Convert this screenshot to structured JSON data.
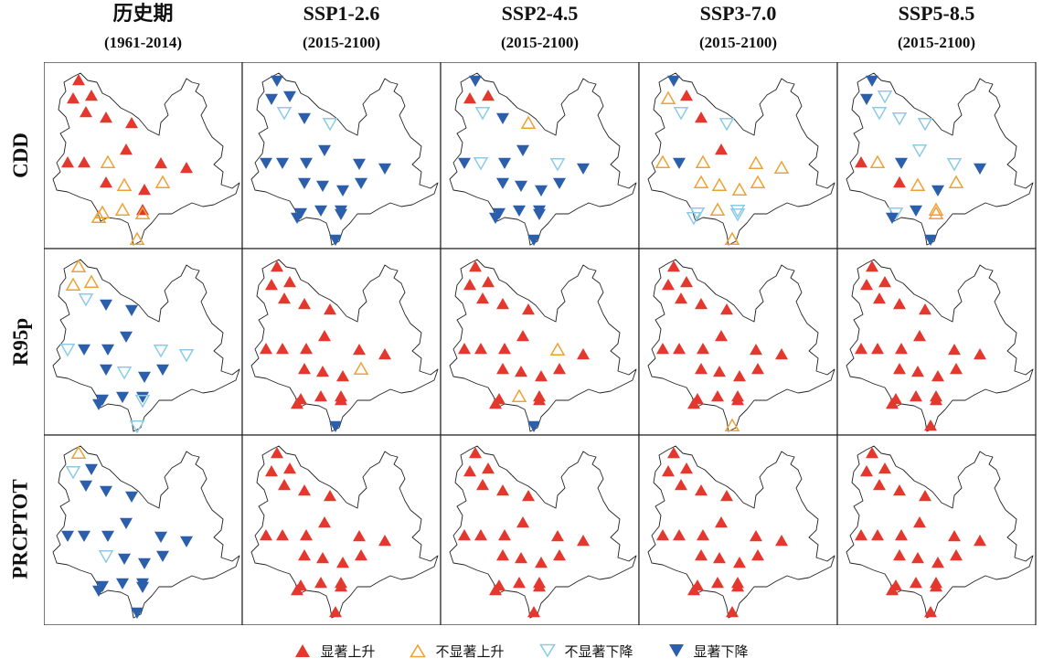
{
  "columns": [
    {
      "title": "历史期",
      "period": "(1961-2014)"
    },
    {
      "title": "SSP1-2.6",
      "period": "(2015-2100)"
    },
    {
      "title": "SSP2-4.5",
      "period": "(2015-2100)"
    },
    {
      "title": "SSP3-7.0",
      "period": "(2015-2100)"
    },
    {
      "title": "SSP5-8.5",
      "period": "(2015-2100)"
    }
  ],
  "rows": [
    "CDD",
    "R95p",
    "PRCPTOT"
  ],
  "legend": [
    {
      "key": "sig_up",
      "label": "显著上升"
    },
    {
      "key": "ns_up",
      "label": "不显著上升"
    },
    {
      "key": "ns_down",
      "label": "不显著下降"
    },
    {
      "key": "sig_down",
      "label": "显著下降"
    }
  ],
  "colors": {
    "sig_up": "#e4382f",
    "ns_up": "#eea236",
    "ns_down": "#8ccbe6",
    "sig_down": "#2b5eab",
    "outline": "#222222"
  },
  "icons": {
    "sig_up": "filled-up-triangle",
    "ns_up": "hollow-up-triangle",
    "ns_down": "hollow-down-triangle",
    "sig_down": "filled-down-triangle"
  },
  "trends": {
    "legend_codes": {
      "U": "sig_up",
      "u": "ns_up",
      "d": "ns_down",
      "D": "sig_down"
    },
    "station_count": 22,
    "CDD": [
      "UUUUUUUuUUUUUuUuuuUuuu",
      "DDDdDdDDDDDDDDDDDDDDDD",
      "DUUdDuDDdDDdDDDDDDDDDD",
      "DuUdUdUuDuuuuuuududddu",
      "DDdddddDuUUdDuDudDuDuD"
    ],
    "R95p": [
      "uuudDDDDDdDddDDdDDDDdd",
      "UUUUUUUUUUUUUuUUUUUUUD",
      "UUUUUUUUUUUuUUUUUuUUUD",
      "UUUUUUUUUUUUUUUUUUUUUu",
      "UUUUUUUUUUUUUUUUUUUUUU"
    ],
    "PRCPTOT": [
      "udDDDDDDDDdDDDDDDDDDDD",
      "UUUUUUUUUUUUUUUUUUUUUU",
      "UUUUUUUUUUUUUUUUUUUUUU",
      "UUUUUUUUUUUUUUUUUUUUUU",
      "UUUUUUUUUUUUUUUUUUUUUU"
    ]
  }
}
